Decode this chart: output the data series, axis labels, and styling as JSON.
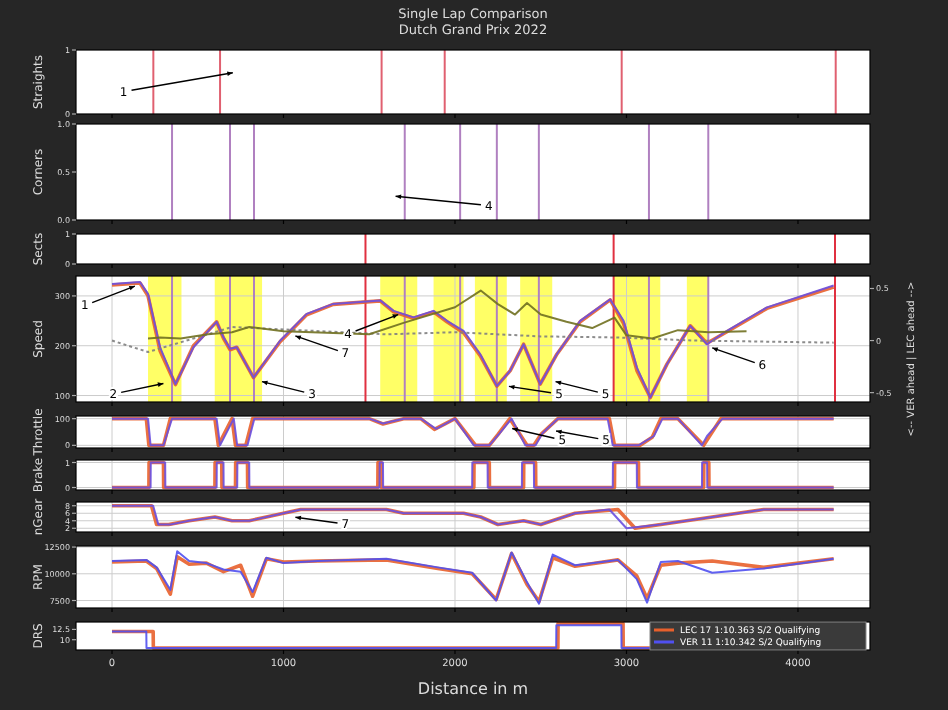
{
  "chart_data": [
    {
      "type": "line",
      "title": "Single Lap Comparison",
      "subtitle": "Dutch Grand Prix 2022",
      "ylabel": "Straights",
      "xlim": [
        -210,
        4420
      ],
      "xticks": [
        0,
        1000,
        2000,
        3000,
        4000
      ],
      "ylim": [
        0,
        1
      ],
      "yticks": [
        0,
        1
      ],
      "tick_labels": "y",
      "ref_lines": [
        {
          "axis": "x",
          "value": 241,
          "color": "#e06070"
        },
        {
          "axis": "x",
          "value": 630,
          "color": "#e06070"
        },
        {
          "axis": "x",
          "value": 1572,
          "color": "#e06070"
        },
        {
          "axis": "x",
          "value": 1940,
          "color": "#e06070"
        },
        {
          "axis": "x",
          "value": 2972,
          "color": "#e06070"
        },
        {
          "axis": "x",
          "value": 4220,
          "color": "#e06070"
        }
      ],
      "annotations": [
        "1"
      ]
    },
    {
      "type": "line",
      "ylabel": "Corners",
      "xlim": [
        -210,
        4420
      ],
      "xticks": [
        0,
        1000,
        2000,
        3000,
        4000
      ],
      "ylim": [
        0,
        1
      ],
      "yticks": [
        {
          "value": 0,
          "label": "0.0"
        },
        {
          "value": 0.5,
          "label": "0.5"
        },
        {
          "value": 1,
          "label": "1.0"
        }
      ],
      "tick_labels": "y",
      "ref_lines": [
        {
          "axis": "x",
          "value": 350,
          "color": "#b080c0"
        },
        {
          "axis": "x",
          "value": 688,
          "color": "#b080c0"
        },
        {
          "axis": "x",
          "value": 828,
          "color": "#b080c0"
        },
        {
          "axis": "x",
          "value": 1707,
          "color": "#b080c0"
        },
        {
          "axis": "x",
          "value": 2030,
          "color": "#b080c0"
        },
        {
          "axis": "x",
          "value": 2244,
          "color": "#b080c0"
        },
        {
          "axis": "x",
          "value": 2489,
          "color": "#b080c0"
        },
        {
          "axis": "x",
          "value": 3131,
          "color": "#b080c0"
        },
        {
          "axis": "x",
          "value": 3477,
          "color": "#b080c0"
        }
      ],
      "annotations": [
        "4"
      ]
    },
    {
      "type": "line",
      "ylabel": "Sects",
      "xlim": [
        -210,
        4420
      ],
      "xticks": [
        0,
        1000,
        2000,
        3000,
        4000
      ],
      "ylim": [
        0,
        1
      ],
      "yticks": [
        0,
        1
      ],
      "tick_labels": "y",
      "ref_lines": [
        {
          "axis": "x",
          "value": 1478,
          "color": "#e03040"
        },
        {
          "axis": "x",
          "value": 2925,
          "color": "#e03040"
        },
        {
          "axis": "x",
          "value": 4216,
          "color": "#e03040"
        }
      ]
    },
    {
      "type": "line",
      "ylabel": "Speed",
      "y2label": "<-- VER ahead | LEC ahead -->",
      "xlim": [
        -210,
        4420
      ],
      "xticks": [
        0,
        1000,
        2000,
        3000,
        4000
      ],
      "ylim": [
        87,
        340
      ],
      "yticks": [
        100,
        200,
        300
      ],
      "y2lim": [
        -0.59,
        0.62
      ],
      "y2ticks": [
        -0.5,
        0,
        0.5
      ],
      "grid": true,
      "tick_labels": "y",
      "bands": [
        {
          "axis": "x",
          "from": 210,
          "to": 405,
          "color": "#ffff40"
        },
        {
          "axis": "x",
          "from": 599,
          "to": 875,
          "color": "#ffff40"
        },
        {
          "axis": "x",
          "from": 1564,
          "to": 1780,
          "color": "#ffff40"
        },
        {
          "axis": "x",
          "from": 1875,
          "to": 2050,
          "color": "#ffff40"
        },
        {
          "axis": "x",
          "from": 2116,
          "to": 2302,
          "color": "#ffff40"
        },
        {
          "axis": "x",
          "from": 2380,
          "to": 2567,
          "color": "#ffff40"
        },
        {
          "axis": "x",
          "from": 2925,
          "to": 3197,
          "color": "#ffff40"
        },
        {
          "axis": "x",
          "from": 3352,
          "to": 3481,
          "color": "#ffff40"
        }
      ],
      "ref_lines": [
        {
          "axis": "x",
          "value": 1478,
          "color": "#e03040"
        },
        {
          "axis": "x",
          "value": 2925,
          "color": "#e03040"
        },
        {
          "axis": "x",
          "value": 4216,
          "color": "#e03040"
        },
        {
          "axis": "x",
          "value": 350,
          "color": "#b080c0"
        },
        {
          "axis": "x",
          "value": 688,
          "color": "#b080c0"
        },
        {
          "axis": "x",
          "value": 828,
          "color": "#b080c0"
        },
        {
          "axis": "x",
          "value": 1707,
          "color": "#b080c0"
        },
        {
          "axis": "x",
          "value": 2030,
          "color": "#b080c0"
        },
        {
          "axis": "x",
          "value": 2244,
          "color": "#b080c0"
        },
        {
          "axis": "x",
          "value": 2489,
          "color": "#b080c0"
        },
        {
          "axis": "x",
          "value": 3131,
          "color": "#b080c0"
        },
        {
          "axis": "x",
          "value": 3477,
          "color": "#b080c0"
        }
      ],
      "series": [
        {
          "color": "#e8602c",
          "x": [
            0,
            163,
            210,
            280,
            370,
            475,
            610,
            650,
            688,
            727,
            825,
            980,
            1135,
            1290,
            1564,
            1642,
            1758,
            1875,
            1953,
            2050,
            2147,
            2244,
            2322,
            2400,
            2497,
            2594,
            2730,
            2905,
            2983,
            3061,
            3139,
            3236,
            3372,
            3469,
            3586,
            3819,
            4208
          ],
          "values": [
            322,
            326,
            300,
            190,
            122,
            200,
            248,
            215,
            192,
            197,
            136,
            208,
            262,
            283,
            290,
            268,
            255,
            268,
            248,
            226,
            180,
            119,
            150,
            203,
            123,
            183,
            248,
            292,
            245,
            150,
            96,
            163,
            240,
            205,
            228,
            275,
            318
          ]
        },
        {
          "color": "#6a50e0",
          "x": [
            0,
            163,
            210,
            280,
            370,
            475,
            610,
            650,
            688,
            727,
            825,
            980,
            1135,
            1290,
            1564,
            1642,
            1758,
            1875,
            1953,
            2050,
            2147,
            2244,
            2322,
            2400,
            2497,
            2594,
            2730,
            2905,
            2983,
            3061,
            3139,
            3236,
            3372,
            3469,
            3586,
            3819,
            4208
          ],
          "values": [
            324,
            328,
            304,
            197,
            123,
            197,
            248,
            217,
            194,
            197,
            136,
            210,
            264,
            284,
            291,
            270,
            257,
            270,
            250,
            230,
            183,
            119,
            150,
            203,
            123,
            183,
            250,
            293,
            250,
            156,
            96,
            163,
            240,
            203,
            230,
            277,
            321
          ]
        },
        {
          "color": "#808080",
          "axis": "y2",
          "line_style": "dotted",
          "x": [
            0,
            210,
            700,
            1600,
            2000,
            2500,
            2930,
            3400,
            4208
          ],
          "values": [
            0,
            -0.11,
            0.13,
            0.06,
            0.08,
            0.04,
            0.03,
            0.0,
            -0.02
          ]
        },
        {
          "color": "#707020",
          "axis": "y2",
          "x": [
            210,
            280,
            400,
            560,
            700,
            800,
            1000,
            1500,
            1700,
            2000,
            2150,
            2250,
            2350,
            2420,
            2500,
            2650,
            2800,
            2930,
            3000,
            3150,
            3300,
            3480,
            3700
          ],
          "values": [
            0.02,
            0.03,
            0.02,
            0.06,
            0.08,
            0.13,
            0.09,
            0.06,
            0.17,
            0.32,
            0.48,
            0.35,
            0.25,
            0.36,
            0.25,
            0.18,
            0.12,
            0.22,
            0.05,
            0.02,
            0.1,
            0.08,
            0.09
          ]
        }
      ],
      "annotations": [
        {
          "text": "1",
          "x": 144,
          "y": 321
        },
        {
          "text": "2",
          "x": 311,
          "y": 125
        },
        {
          "text": "3",
          "x": 863,
          "y": 129
        },
        {
          "text": "4",
          "x": 1680,
          "y": 264
        },
        {
          "text": "5",
          "x": 2303,
          "y": 119
        },
        {
          "text": "5",
          "x": 2575,
          "y": 129
        },
        {
          "text": "6",
          "x": 3489,
          "y": 197
        },
        {
          "text": "7",
          "x": 1058,
          "y": 221
        }
      ]
    },
    {
      "type": "line",
      "ylabel": "Throttle",
      "xlim": [
        -210,
        4420
      ],
      "xticks": [
        0,
        1000,
        2000,
        3000,
        4000
      ],
      "ylim": [
        -10,
        110
      ],
      "yticks": [
        0,
        100
      ],
      "grid": true,
      "tick_labels": "y",
      "series": [
        {
          "color": "#e8602c",
          "x": [
            0,
            200,
            215,
            300,
            340,
            420,
            600,
            620,
            700,
            720,
            780,
            820,
            850,
            1500,
            1580,
            1700,
            1800,
            1880,
            2000,
            2120,
            2200,
            2250,
            2320,
            2420,
            2460,
            2500,
            2600,
            2900,
            2930,
            3080,
            3150,
            3200,
            3300,
            3450,
            3480,
            3550,
            4208
          ],
          "values": [
            100,
            100,
            0,
            0,
            100,
            100,
            100,
            0,
            100,
            0,
            0,
            100,
            100,
            100,
            80,
            100,
            100,
            60,
            100,
            0,
            0,
            40,
            100,
            0,
            0,
            40,
            100,
            100,
            0,
            0,
            30,
            100,
            100,
            0,
            30,
            100,
            100
          ]
        },
        {
          "color": "#6a50e0",
          "x": [
            0,
            210,
            225,
            300,
            350,
            430,
            610,
            630,
            710,
            730,
            790,
            830,
            860,
            1500,
            1580,
            1700,
            1800,
            1890,
            2000,
            2110,
            2200,
            2260,
            2330,
            2410,
            2470,
            2510,
            2600,
            2890,
            2920,
            3070,
            3160,
            3210,
            3300,
            3440,
            3470,
            3560,
            4208
          ],
          "values": [
            100,
            100,
            0,
            0,
            100,
            100,
            100,
            0,
            100,
            0,
            0,
            100,
            100,
            100,
            82,
            100,
            100,
            62,
            100,
            0,
            0,
            45,
            100,
            0,
            0,
            45,
            100,
            100,
            0,
            0,
            35,
            100,
            100,
            0,
            35,
            100,
            100
          ]
        }
      ],
      "annotations": [
        {
          "text": "5",
          "x": 2322,
          "y": 65
        },
        {
          "text": "5",
          "x": 2578,
          "y": 55
        }
      ]
    },
    {
      "type": "line",
      "ylabel": "Brake",
      "xlim": [
        -210,
        4420
      ],
      "xticks": [
        0,
        1000,
        2000,
        3000,
        4000
      ],
      "ylim": [
        -0.1,
        1.1
      ],
      "yticks": [
        0,
        1
      ],
      "grid": true,
      "tick_labels": "y",
      "series": [
        {
          "color": "#e8602c",
          "x": [
            0,
            215,
            216,
            300,
            301,
            600,
            601,
            640,
            641,
            720,
            721,
            790,
            791,
            1550,
            1551,
            1570,
            1571,
            2110,
            2111,
            2200,
            2201,
            2400,
            2401,
            2470,
            2471,
            2930,
            2931,
            3070,
            3071,
            3450,
            3451,
            3480,
            3481,
            4208
          ],
          "values": [
            0,
            0,
            1,
            1,
            0,
            0,
            1,
            1,
            0,
            0,
            1,
            1,
            0,
            0,
            1,
            1,
            0,
            0,
            1,
            1,
            0,
            0,
            1,
            1,
            0,
            0,
            1,
            1,
            0,
            0,
            1,
            1,
            0,
            0
          ]
        },
        {
          "color": "#6a50e0",
          "x": [
            0,
            225,
            226,
            310,
            311,
            610,
            611,
            650,
            651,
            730,
            731,
            800,
            801,
            1560,
            1561,
            1580,
            1581,
            2100,
            2101,
            2190,
            2191,
            2390,
            2391,
            2460,
            2461,
            2920,
            2921,
            3060,
            3061,
            3440,
            3441,
            3470,
            3471,
            4208
          ],
          "values": [
            0,
            0,
            1,
            1,
            0,
            0,
            1,
            1,
            0,
            0,
            1,
            1,
            0,
            0,
            1,
            1,
            0,
            0,
            1,
            1,
            0,
            0,
            1,
            1,
            0,
            0,
            1,
            1,
            0,
            0,
            1,
            1,
            0,
            0
          ]
        }
      ]
    },
    {
      "type": "line",
      "ylabel": "nGear",
      "xlim": [
        -210,
        4420
      ],
      "xticks": [
        0,
        1000,
        2000,
        3000,
        4000
      ],
      "ylim": [
        1,
        9
      ],
      "yticks": [
        2,
        4,
        6,
        8
      ],
      "grid": true,
      "tick_labels": "y",
      "series": [
        {
          "color": "#e8602c",
          "x": [
            0,
            230,
            260,
            330,
            450,
            600,
            700,
            800,
            900,
            1100,
            1600,
            1700,
            2050,
            2150,
            2250,
            2400,
            2500,
            2700,
            2950,
            3050,
            3200,
            3350,
            3500,
            3800,
            4208
          ],
          "values": [
            8,
            8,
            3,
            3,
            4,
            5,
            4,
            4,
            5,
            7,
            7,
            6,
            6,
            5,
            3,
            4,
            3,
            6,
            7,
            2,
            3,
            4,
            5,
            7,
            7
          ]
        },
        {
          "color": "#6a50e0",
          "x": [
            0,
            240,
            270,
            340,
            450,
            600,
            700,
            800,
            900,
            1100,
            1600,
            1700,
            2050,
            2150,
            2250,
            2400,
            2500,
            2700,
            2900,
            3000,
            3200,
            3350,
            3500,
            3800,
            4208
          ],
          "values": [
            8,
            8,
            3,
            3,
            4,
            5,
            4,
            4,
            5,
            7,
            7,
            6,
            6,
            5,
            3,
            4,
            3,
            6,
            7,
            2,
            3,
            4,
            5,
            7,
            7
          ]
        }
      ],
      "annotations": [
        {
          "text": "7",
          "x": 1058,
          "y": 5
        }
      ]
    },
    {
      "type": "line",
      "ylabel": "RPM",
      "xlim": [
        -210,
        4420
      ],
      "xticks": [
        0,
        1000,
        2000,
        3000,
        4000
      ],
      "ylim": [
        6800,
        12600
      ],
      "yticks": [
        7500,
        10000,
        12500
      ],
      "grid": true,
      "tick_labels": "y",
      "series": [
        {
          "color": "#e8602c",
          "x": [
            0,
            200,
            260,
            340,
            380,
            450,
            550,
            650,
            750,
            820,
            900,
            1000,
            1200,
            1600,
            1900,
            2100,
            2240,
            2330,
            2420,
            2490,
            2570,
            2700,
            2950,
            3060,
            3120,
            3200,
            3300,
            3500,
            3800,
            4208
          ],
          "values": [
            11100,
            11200,
            10500,
            8100,
            11600,
            10900,
            11000,
            10200,
            10800,
            7900,
            11400,
            11100,
            11200,
            11300,
            10500,
            10000,
            7600,
            11900,
            9000,
            7400,
            11500,
            10700,
            11300,
            9800,
            7700,
            10800,
            11000,
            11200,
            10600,
            11400
          ]
        },
        {
          "color": "#5050f0",
          "x": [
            0,
            200,
            260,
            340,
            380,
            450,
            550,
            650,
            750,
            820,
            900,
            1000,
            1200,
            1600,
            1900,
            2100,
            2240,
            2330,
            2420,
            2490,
            2570,
            2700,
            2950,
            3060,
            3120,
            3200,
            3300,
            3500,
            3800,
            4208
          ],
          "values": [
            11200,
            11300,
            10600,
            8500,
            12100,
            11200,
            11000,
            10400,
            10200,
            8300,
            11500,
            11000,
            11200,
            11400,
            10600,
            10100,
            7500,
            12000,
            9200,
            7200,
            11800,
            10800,
            11300,
            9500,
            7300,
            11100,
            11200,
            10100,
            10500,
            11400
          ]
        }
      ]
    },
    {
      "type": "line",
      "ylabel": "DRS",
      "xlabel": "Distance in m",
      "xlim": [
        -210,
        4420
      ],
      "xticks": [
        0,
        1000,
        2000,
        3000,
        4000
      ],
      "ylim": [
        7.5,
        14.3
      ],
      "yticks": [
        10,
        12.5
      ],
      "legend": "right",
      "series": [
        {
          "name": "LEC 17 1:10.363 S/2 Qualifying",
          "color": "#e8602c",
          "x": [
            0,
            240,
            241,
            2600,
            2601,
            2980,
            2981,
            3150
          ],
          "values": [
            12,
            12,
            8,
            8,
            14,
            14,
            8,
            8
          ]
        },
        {
          "name": "VER 11 1:10.342 S/2 Qualifying",
          "color": "#5050f0",
          "x": [
            0,
            200,
            201,
            2590,
            2591,
            2970,
            2971,
            3150
          ],
          "values": [
            12,
            12,
            8,
            8,
            13.5,
            13.5,
            8,
            8
          ]
        }
      ]
    }
  ]
}
